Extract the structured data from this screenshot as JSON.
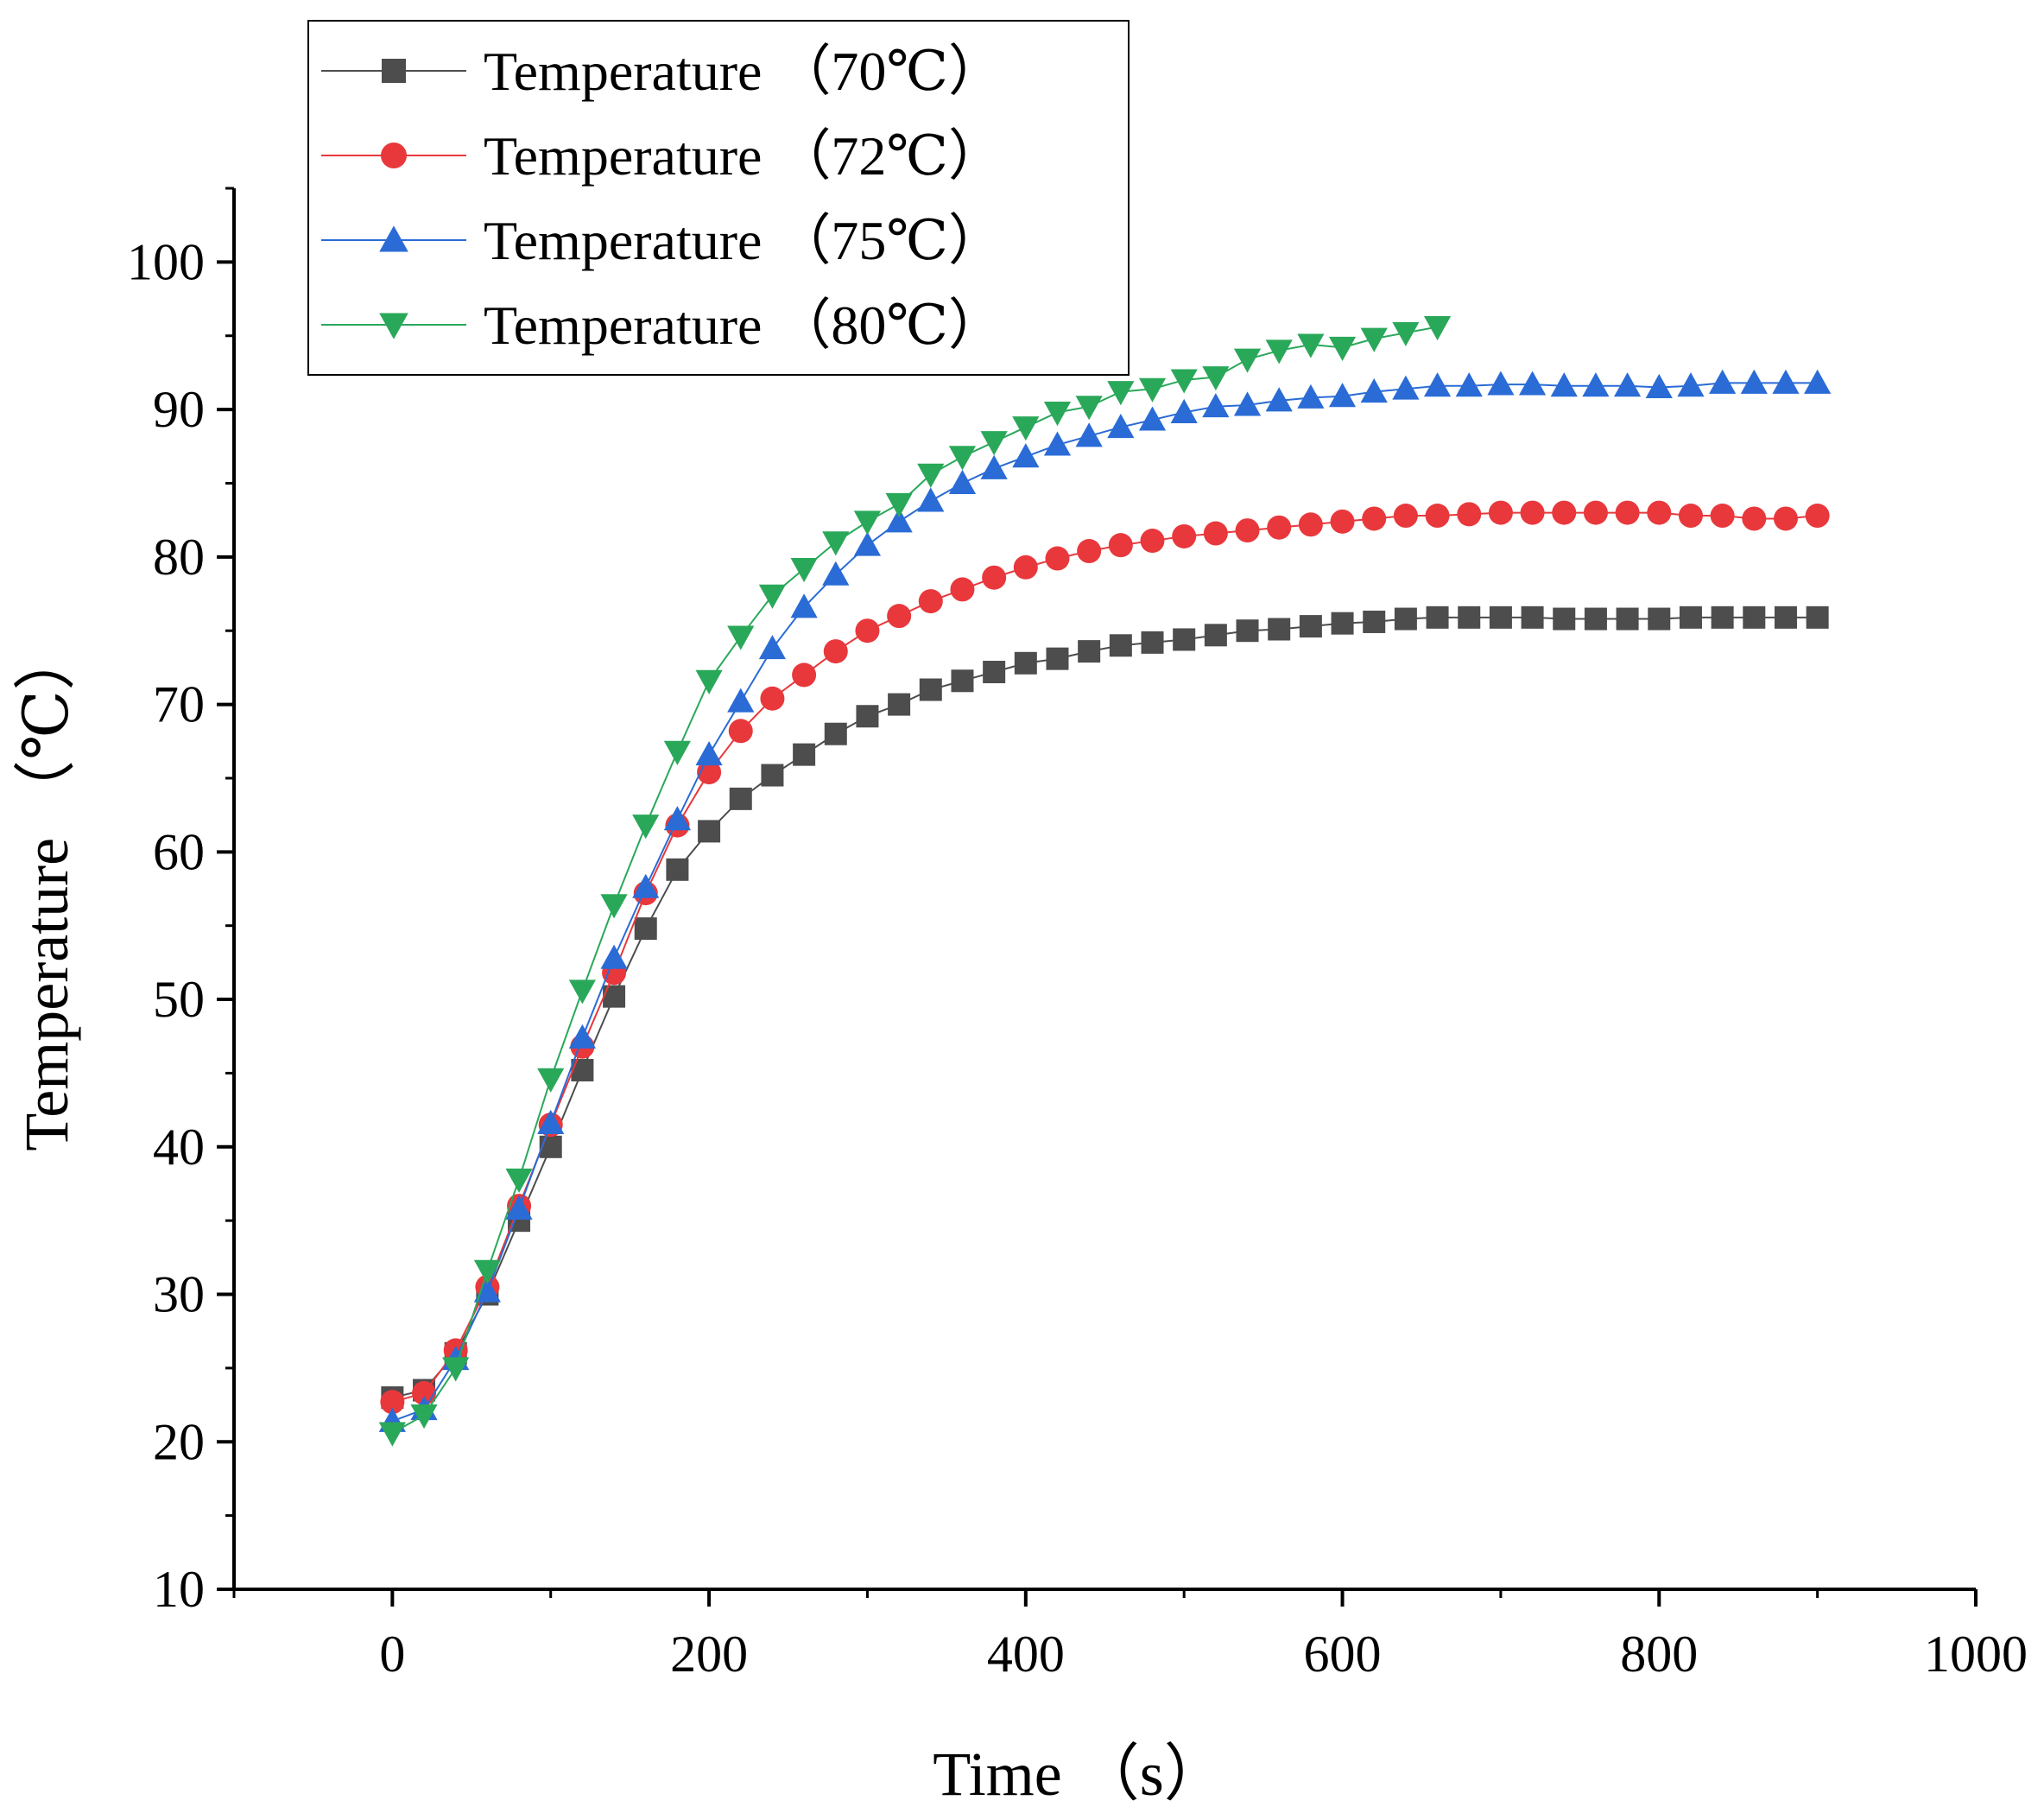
{
  "chart_data": {
    "type": "line",
    "title": "",
    "xlabel": "Time （s）",
    "ylabel": "Temperature （℃）",
    "xlim": [
      -100,
      1000
    ],
    "ylim": [
      10,
      105
    ],
    "xticks": [
      0,
      200,
      400,
      600,
      800,
      1000
    ],
    "yticks": [
      10,
      20,
      30,
      40,
      50,
      60,
      70,
      80,
      90,
      100
    ],
    "legend_position": "top-left",
    "series": [
      {
        "name": "Temperature （70℃）",
        "color": "#4d4d4d",
        "marker": "square",
        "x": [
          0,
          20,
          40,
          60,
          80,
          100,
          120,
          140,
          160,
          180,
          200,
          220,
          240,
          260,
          280,
          300,
          320,
          340,
          360,
          380,
          400,
          420,
          440,
          460,
          480,
          500,
          520,
          540,
          560,
          580,
          600,
          620,
          640,
          660,
          680,
          700,
          720,
          740,
          760,
          780,
          800,
          820,
          840,
          860,
          880,
          900
        ],
        "y": [
          23,
          23.5,
          26,
          30,
          35,
          40,
          45.2,
          50.2,
          54.8,
          58.8,
          61.4,
          63.6,
          65.2,
          66.6,
          68,
          69.2,
          70,
          71,
          71.6,
          72.2,
          72.8,
          73.1,
          73.6,
          74,
          74.2,
          74.4,
          74.7,
          75,
          75.1,
          75.3,
          75.5,
          75.6,
          75.8,
          75.9,
          75.9,
          75.9,
          75.9,
          75.8,
          75.8,
          75.8,
          75.8,
          75.9,
          75.9,
          75.9,
          75.9,
          75.9
        ]
      },
      {
        "name": "Temperature （72℃）",
        "color": "#e8383c",
        "marker": "circle",
        "x": [
          0,
          20,
          40,
          60,
          80,
          100,
          120,
          140,
          160,
          180,
          200,
          220,
          240,
          260,
          280,
          300,
          320,
          340,
          360,
          380,
          400,
          420,
          440,
          460,
          480,
          500,
          520,
          540,
          560,
          580,
          600,
          620,
          640,
          660,
          680,
          700,
          720,
          740,
          760,
          780,
          800,
          820,
          840,
          860,
          880,
          900
        ],
        "y": [
          22.7,
          23.3,
          26.2,
          30.5,
          36,
          41.5,
          46.8,
          51.8,
          57.2,
          61.8,
          65.4,
          68.2,
          70.4,
          72,
          73.6,
          75,
          76,
          77,
          77.8,
          78.6,
          79.3,
          79.9,
          80.4,
          80.8,
          81.1,
          81.4,
          81.6,
          81.8,
          82,
          82.2,
          82.4,
          82.6,
          82.8,
          82.8,
          82.9,
          83,
          83,
          83,
          83,
          83,
          83,
          82.8,
          82.8,
          82.6,
          82.6,
          82.8
        ]
      },
      {
        "name": "Temperature （75℃）",
        "color": "#2a6bd6",
        "marker": "triangle-up",
        "x": [
          0,
          20,
          40,
          60,
          80,
          100,
          120,
          140,
          160,
          180,
          200,
          220,
          240,
          260,
          280,
          300,
          320,
          340,
          360,
          380,
          400,
          420,
          440,
          460,
          480,
          500,
          520,
          540,
          560,
          580,
          600,
          620,
          640,
          660,
          680,
          700,
          720,
          740,
          760,
          780,
          800,
          820,
          840,
          860,
          880,
          900
        ],
        "y": [
          21.4,
          22.2,
          25.6,
          30.2,
          35.8,
          41.6,
          47.4,
          52.8,
          57.6,
          62.2,
          66.6,
          70.2,
          73.8,
          76.6,
          78.8,
          80.8,
          82.4,
          83.8,
          85,
          86,
          86.8,
          87.6,
          88.2,
          88.8,
          89.3,
          89.8,
          90.2,
          90.3,
          90.6,
          90.8,
          90.9,
          91.2,
          91.4,
          91.6,
          91.6,
          91.7,
          91.7,
          91.6,
          91.6,
          91.6,
          91.5,
          91.6,
          91.8,
          91.8,
          91.8,
          91.8
        ]
      },
      {
        "name": "Temperature （80℃）",
        "color": "#2aa85a",
        "marker": "triangle-down",
        "x": [
          0,
          20,
          40,
          60,
          80,
          100,
          120,
          140,
          160,
          180,
          200,
          220,
          240,
          260,
          280,
          300,
          320,
          340,
          360,
          380,
          400,
          420,
          440,
          460,
          480,
          500,
          520,
          540,
          560,
          580,
          600,
          620,
          640,
          660
        ],
        "y": [
          20.6,
          21.8,
          25,
          31.6,
          37.8,
          44.6,
          50.6,
          56.4,
          61.8,
          66.8,
          71.6,
          74.6,
          77.4,
          79.2,
          81,
          82.4,
          83.6,
          85.6,
          86.8,
          87.8,
          88.8,
          89.8,
          90.2,
          91.2,
          91.4,
          92,
          92.2,
          93.4,
          94,
          94.4,
          94.2,
          94.8,
          95.2,
          95.6
        ]
      }
    ]
  }
}
